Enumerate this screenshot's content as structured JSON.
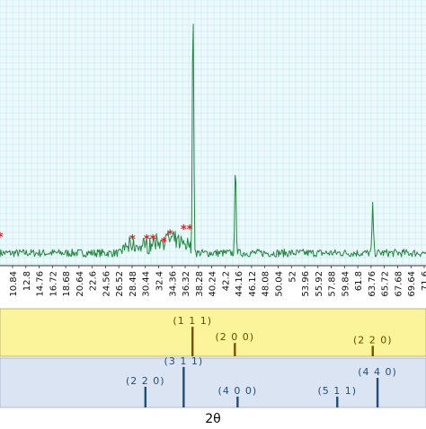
{
  "chart_data": {
    "type": "line",
    "xlabel": "2θ",
    "grid": true,
    "colors": {
      "trace": "#1f8a3a",
      "grid": "#b9e4f2",
      "plot_bg": "#eef9fc",
      "marker": "#e21b1b",
      "ref_band_1": "#fbf49a",
      "ref_band_2": "#dbe4f3",
      "ref_line_1": "#7a5200",
      "ref_line_2": "#1f4e7a",
      "ref_text_1": "#6b4a00",
      "ref_text_2": "#1f4e7a"
    },
    "x_ticks": [
      "10.84",
      "12.8",
      "14.76",
      "16.72",
      "18.68",
      "20.64",
      "22.6",
      "24.56",
      "26.52",
      "28.48",
      "30.44",
      "32.4",
      "34.36",
      "36.32",
      "38.28",
      "40.24",
      "42.2",
      "44.16",
      "46.12",
      "48.08",
      "50.04",
      "52",
      "53.96",
      "55.92",
      "57.88",
      "59.84",
      "61.8",
      "63.76",
      "65.72",
      "67.68",
      "69.64",
      "71.6"
    ],
    "xlim": [
      10.0,
      72.4
    ],
    "ylim": [
      0,
      100
    ],
    "peaks": [
      {
        "x": 38.28,
        "y": 100
      },
      {
        "x": 44.5,
        "y": 36
      },
      {
        "x": 64.6,
        "y": 19
      }
    ],
    "star_markers": [
      {
        "x": 10.0,
        "y": 10
      },
      {
        "x": 29.4,
        "y": 9
      },
      {
        "x": 31.5,
        "y": 9
      },
      {
        "x": 32.4,
        "y": 9
      },
      {
        "x": 34.0,
        "y": 8
      },
      {
        "x": 34.9,
        "y": 11
      },
      {
        "x": 36.9,
        "y": 13
      },
      {
        "x": 37.8,
        "y": 13
      }
    ],
    "ref_patterns": [
      {
        "lines": [
          {
            "x": 38.2,
            "label": "(1 1 1)",
            "height": 0.62
          },
          {
            "x": 44.4,
            "label": "(2 0 0)",
            "height": 0.28
          },
          {
            "x": 64.6,
            "label": "(2 2 0)",
            "height": 0.22
          }
        ]
      },
      {
        "lines": [
          {
            "x": 31.3,
            "label": "(2 2 0)",
            "height": 0.42
          },
          {
            "x": 36.9,
            "label": "(3 1 1)",
            "height": 0.82
          },
          {
            "x": 44.8,
            "label": "(4 0 0)",
            "height": 0.22
          },
          {
            "x": 59.4,
            "label": "(5 1 1)",
            "height": 0.22
          },
          {
            "x": 65.3,
            "label": "(4 4 0)",
            "height": 0.6
          }
        ]
      }
    ]
  }
}
